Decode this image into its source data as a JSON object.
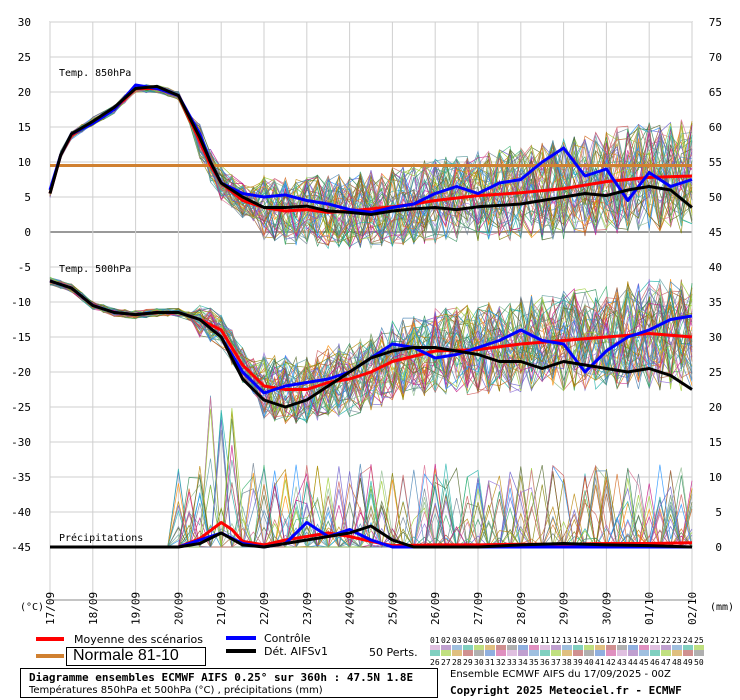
{
  "chart_data": [
    {
      "type": "line",
      "title": "Temp. 850hPa",
      "ylabel_left": "(°C)",
      "y_ticks": [
        0,
        5,
        10,
        15,
        20,
        25,
        30
      ],
      "x_ticks": [
        "17/09",
        "18/09",
        "19/09",
        "20/09",
        "21/09",
        "22/09",
        "23/09",
        "24/09",
        "25/09",
        "26/09",
        "27/09",
        "28/09",
        "29/09",
        "30/09",
        "01/10",
        "02/10"
      ],
      "normal_value": 9.5,
      "series": [
        {
          "name": "Moyenne des scénarios",
          "color": "#ff0000",
          "x": [
            0,
            0.25,
            0.5,
            1,
            1.5,
            2,
            2.5,
            3,
            3.5,
            3.75,
            4,
            4.5,
            5,
            5.5,
            6,
            6.5,
            7,
            7.5,
            8,
            8.5,
            9,
            10,
            11,
            12,
            13,
            14,
            15
          ],
          "values": [
            5.5,
            11,
            13.8,
            15.8,
            17.5,
            20.5,
            20.5,
            19.5,
            13,
            9.5,
            7,
            4.5,
            3.5,
            3,
            3.2,
            2.8,
            3,
            3.3,
            3.6,
            4,
            4.5,
            5.2,
            5.6,
            6.2,
            7.2,
            7.8,
            8
          ]
        },
        {
          "name": "Contrôle",
          "color": "#0000ff",
          "x": [
            0,
            0.25,
            0.5,
            1,
            1.5,
            2,
            2.5,
            3,
            3.5,
            3.75,
            4,
            4.5,
            5,
            5.5,
            6,
            6.5,
            7,
            7.5,
            8,
            8.5,
            9,
            9.5,
            10,
            10.5,
            11,
            11.5,
            12,
            12.5,
            13,
            13.5,
            14,
            14.5,
            15
          ],
          "values": [
            6,
            11,
            14,
            15.5,
            17.5,
            21,
            20.5,
            19.5,
            14,
            10,
            7,
            5.5,
            5,
            5.3,
            4.5,
            4,
            3.2,
            2.8,
            3.5,
            4,
            5.5,
            6.5,
            5.5,
            7,
            7.5,
            10,
            12,
            8,
            9,
            4.5,
            8.5,
            6.5,
            7.5
          ]
        },
        {
          "name": "Dét. AIFSv1",
          "color": "#000000",
          "x": [
            0,
            0.25,
            0.5,
            1,
            1.5,
            2,
            2.5,
            3,
            3.5,
            3.75,
            4,
            4.5,
            5,
            5.5,
            6,
            6.5,
            7,
            7.5,
            8,
            8.5,
            9,
            9.5,
            10,
            10.5,
            11,
            11.5,
            12,
            12.5,
            13,
            13.5,
            14,
            14.5,
            15
          ],
          "values": [
            5.5,
            11,
            14,
            15.8,
            17.8,
            20.5,
            20.8,
            19.5,
            13.5,
            10,
            7,
            5,
            3.5,
            3.5,
            3.7,
            3,
            2.8,
            2.5,
            3,
            3.3,
            3.5,
            3.2,
            3.6,
            3.8,
            4,
            4.5,
            5,
            5.5,
            5.2,
            6,
            6.5,
            6,
            3.5
          ]
        }
      ]
    },
    {
      "type": "line",
      "title": "Temp. 500hPa",
      "y_ticks": [
        -45,
        -40,
        -35,
        -30,
        -25,
        -20,
        -15,
        -10,
        -5
      ],
      "series": [
        {
          "name": "Moyenne des scénarios",
          "color": "#ff0000",
          "x": [
            0,
            0.5,
            1,
            1.5,
            2,
            2.5,
            3,
            3.5,
            4,
            4.5,
            5,
            5.5,
            6,
            6.5,
            7,
            7.5,
            8,
            9,
            10,
            11,
            12,
            13,
            14,
            15
          ],
          "values": [
            -7,
            -8,
            -10.5,
            -11.5,
            -11.8,
            -11.5,
            -11.5,
            -12.5,
            -14,
            -19,
            -22,
            -22.5,
            -22.5,
            -21.5,
            -21,
            -20,
            -18.5,
            -17,
            -16.8,
            -16,
            -15.5,
            -15,
            -14.5,
            -15
          ]
        },
        {
          "name": "Contrôle",
          "color": "#0000ff",
          "x": [
            0,
            0.5,
            1,
            1.5,
            2,
            2.5,
            3,
            3.5,
            4,
            4.5,
            5,
            5.5,
            6,
            6.5,
            7,
            7.5,
            8,
            8.5,
            9,
            9.5,
            10,
            10.5,
            11,
            11.5,
            12,
            12.5,
            13,
            13.5,
            14,
            14.5,
            15
          ],
          "values": [
            -7,
            -8,
            -10.5,
            -11.5,
            -11.8,
            -11.5,
            -11.5,
            -12.5,
            -15,
            -20,
            -23,
            -22,
            -21.5,
            -21,
            -20,
            -18,
            -16,
            -16.5,
            -18,
            -17.5,
            -16.5,
            -15.5,
            -14,
            -15.5,
            -16,
            -20,
            -17,
            -15,
            -14,
            -12.5,
            -12
          ]
        },
        {
          "name": "Dét. AIFSv1",
          "color": "#000000",
          "x": [
            0,
            0.5,
            1,
            1.5,
            2,
            2.5,
            3,
            3.5,
            4,
            4.5,
            5,
            5.5,
            6,
            6.5,
            7,
            7.5,
            8,
            8.5,
            9,
            9.5,
            10,
            10.5,
            11,
            11.5,
            12,
            12.5,
            13,
            13.5,
            14,
            14.5,
            15
          ],
          "values": [
            -7,
            -8,
            -10.5,
            -11.5,
            -11.8,
            -11.5,
            -11.5,
            -12.5,
            -15,
            -21,
            -24,
            -25,
            -24,
            -22,
            -20,
            -18,
            -17,
            -16.5,
            -16.5,
            -17,
            -17.5,
            -18.5,
            -18.5,
            -19.5,
            -18.5,
            -19,
            -19.5,
            -20,
            -19.5,
            -20.5,
            -22.5
          ]
        }
      ]
    },
    {
      "type": "line",
      "title": "Précipitations",
      "ylabel_right": "(mm)",
      "y_ticks": [
        0,
        5,
        10,
        15,
        20
      ],
      "right_ticks_850": [
        45,
        50,
        55,
        60,
        65,
        70,
        75
      ],
      "right_ticks_500": [
        20,
        25,
        30,
        35,
        40
      ],
      "series": [
        {
          "name": "Moyenne des scénarios",
          "color": "#ff0000",
          "x": [
            0,
            3,
            3.5,
            4,
            4.25,
            4.5,
            5,
            5.5,
            6,
            6.5,
            7,
            7.5,
            8,
            9,
            10,
            11,
            12,
            13,
            14,
            15
          ],
          "values": [
            0,
            0,
            1.2,
            3.5,
            2.5,
            0.8,
            0.3,
            1,
            1.5,
            2,
            1.5,
            0.8,
            0.2,
            0.3,
            0.3,
            0.4,
            0.4,
            0.5,
            0.5,
            0.6
          ]
        },
        {
          "name": "Contrôle",
          "color": "#0000ff",
          "x": [
            0,
            3,
            3.5,
            4,
            4.5,
            5,
            5.5,
            6,
            6.5,
            7,
            7.5,
            8,
            9,
            10,
            11,
            12,
            13,
            14,
            15
          ],
          "values": [
            0,
            0,
            1,
            2,
            0.5,
            0,
            0.5,
            3.5,
            1.5,
            2.5,
            1,
            0,
            0,
            0,
            0,
            0,
            0,
            0,
            0
          ]
        },
        {
          "name": "Dét. AIFSv1",
          "color": "#000000",
          "x": [
            0,
            3,
            3.5,
            4,
            4.5,
            5,
            5.5,
            6,
            6.5,
            7,
            7.5,
            8,
            8.5,
            9,
            10,
            11,
            12,
            13,
            14,
            15
          ],
          "values": [
            0,
            0,
            0.5,
            2,
            0.3,
            0,
            0.5,
            1,
            1.5,
            2,
            3,
            1,
            0,
            0,
            0,
            0.3,
            0.5,
            0.3,
            0.2,
            0
          ]
        }
      ]
    }
  ],
  "legend": {
    "mean": "Moyenne des scénarios",
    "control": "Contrôle",
    "det": "Dét. AIFSv1",
    "normal": "Normale 81-10",
    "perts": "50 Perts.",
    "mean_color": "#ff0000",
    "control_color": "#0000ff",
    "det_color": "#000000",
    "normal_color": "#d08030",
    "pert_row1": [
      "01",
      "02",
      "03",
      "04",
      "05",
      "06",
      "07",
      "08",
      "09",
      "10",
      "11",
      "12",
      "13",
      "14",
      "15",
      "16",
      "17",
      "18",
      "19",
      "20",
      "21",
      "22",
      "23",
      "24",
      "25"
    ],
    "pert_row2": [
      "26",
      "27",
      "28",
      "29",
      "30",
      "31",
      "32",
      "33",
      "34",
      "35",
      "36",
      "37",
      "38",
      "39",
      "40",
      "41",
      "42",
      "43",
      "44",
      "45",
      "46",
      "47",
      "48",
      "49",
      "50"
    ]
  },
  "footer": {
    "line1": "Diagramme ensembles ECMWF AIFS 0.25° sur 360h : 47.5N 1.8E",
    "line2": "Températures 850hPa et 500hPa (°C) , précipitations (mm)",
    "src1": "Ensemble ECMWF AIFS du 17/09/2025 - 00Z",
    "src2": "Copyright 2025 Meteociel.fr - ECMWF"
  },
  "axis_units": {
    "left": "(°C)",
    "right": "(mm)"
  },
  "left_ticks": [
    "30",
    "25",
    "20",
    "15",
    "10",
    "5",
    "0",
    "-5",
    "-10",
    "-15",
    "-20",
    "-25",
    "-30",
    "-35",
    "-40",
    "-45"
  ],
  "right_ticks": [
    "75",
    "70",
    "65",
    "60",
    "55",
    "50",
    "45",
    "40",
    "35",
    "30",
    "25",
    "20",
    "15",
    "10",
    "5",
    "0"
  ]
}
